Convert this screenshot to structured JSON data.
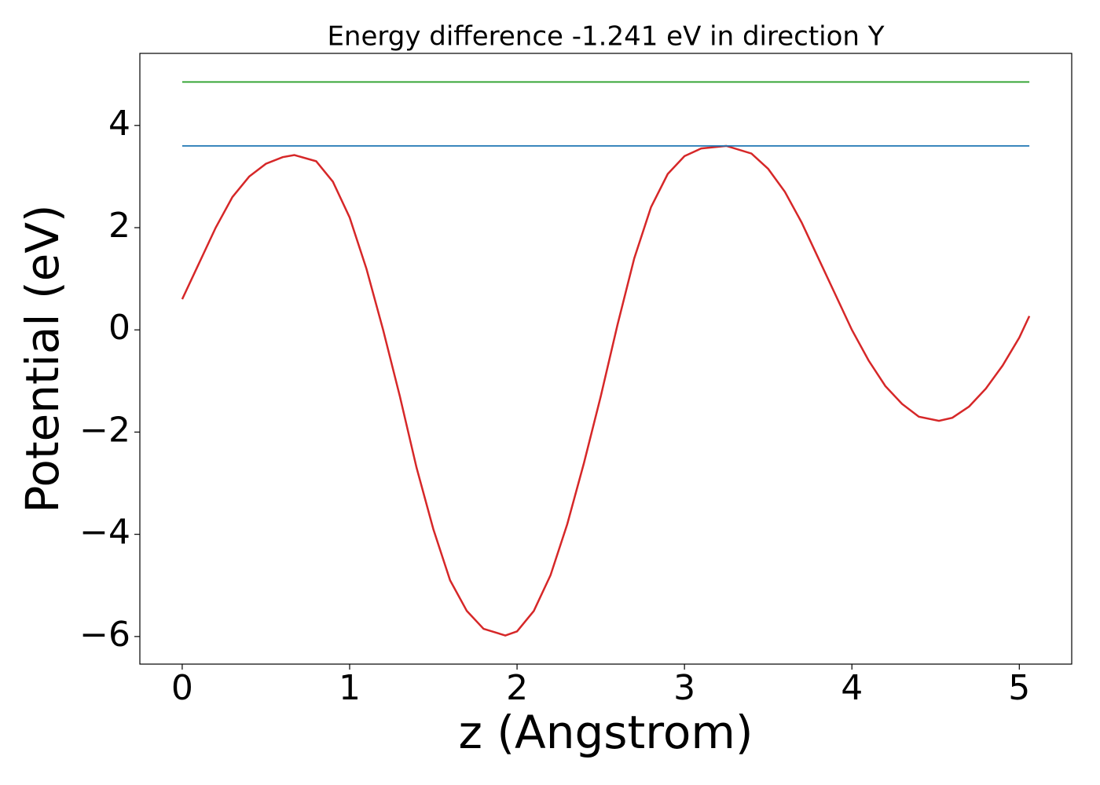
{
  "chart_data": {
    "type": "line",
    "title": "Energy difference -1.241 eV in direction Y",
    "xlabel": "z (Angstrom)",
    "ylabel": "Potential (eV)",
    "xlim": [
      -0.253,
      5.313
    ],
    "ylim": [
      -6.54,
      5.41
    ],
    "xticks": [
      0,
      1,
      2,
      3,
      4,
      5
    ],
    "yticks": [
      {
        "value": -6,
        "label": "−6"
      },
      {
        "value": -4,
        "label": "−4"
      },
      {
        "value": -2,
        "label": "−2"
      },
      0,
      2,
      4
    ],
    "series": [
      {
        "color": "#d62728",
        "x": [
          0,
          0.1,
          0.2,
          0.3,
          0.4,
          0.5,
          0.6,
          0.67,
          0.8,
          0.9,
          1.0,
          1.1,
          1.2,
          1.3,
          1.4,
          1.5,
          1.6,
          1.7,
          1.8,
          1.93,
          2.0,
          2.1,
          2.2,
          2.3,
          2.4,
          2.5,
          2.6,
          2.7,
          2.8,
          2.9,
          3.0,
          3.1,
          3.25,
          3.4,
          3.5,
          3.6,
          3.7,
          3.8,
          3.9,
          4.0,
          4.1,
          4.2,
          4.3,
          4.4,
          4.52,
          4.6,
          4.7,
          4.8,
          4.9,
          5.0,
          5.06
        ],
        "values": [
          0.6,
          1.3,
          2.0,
          2.6,
          3.0,
          3.25,
          3.38,
          3.42,
          3.3,
          2.9,
          2.2,
          1.2,
          0.0,
          -1.3,
          -2.7,
          -3.9,
          -4.9,
          -5.5,
          -5.85,
          -5.98,
          -5.9,
          -5.5,
          -4.8,
          -3.8,
          -2.6,
          -1.3,
          0.1,
          1.4,
          2.4,
          3.05,
          3.4,
          3.55,
          3.6,
          3.45,
          3.15,
          2.7,
          2.1,
          1.4,
          0.7,
          0.0,
          -0.6,
          -1.1,
          -1.45,
          -1.7,
          -1.78,
          -1.72,
          -1.5,
          -1.15,
          -0.7,
          -0.15,
          0.27
        ]
      },
      {
        "color": "#1f77b4",
        "x": [
          0,
          5.06
        ],
        "values": [
          3.6,
          3.6
        ]
      },
      {
        "color": "#2ca02c",
        "x": [
          0,
          5.06
        ],
        "values": [
          4.85,
          4.85
        ]
      }
    ]
  }
}
